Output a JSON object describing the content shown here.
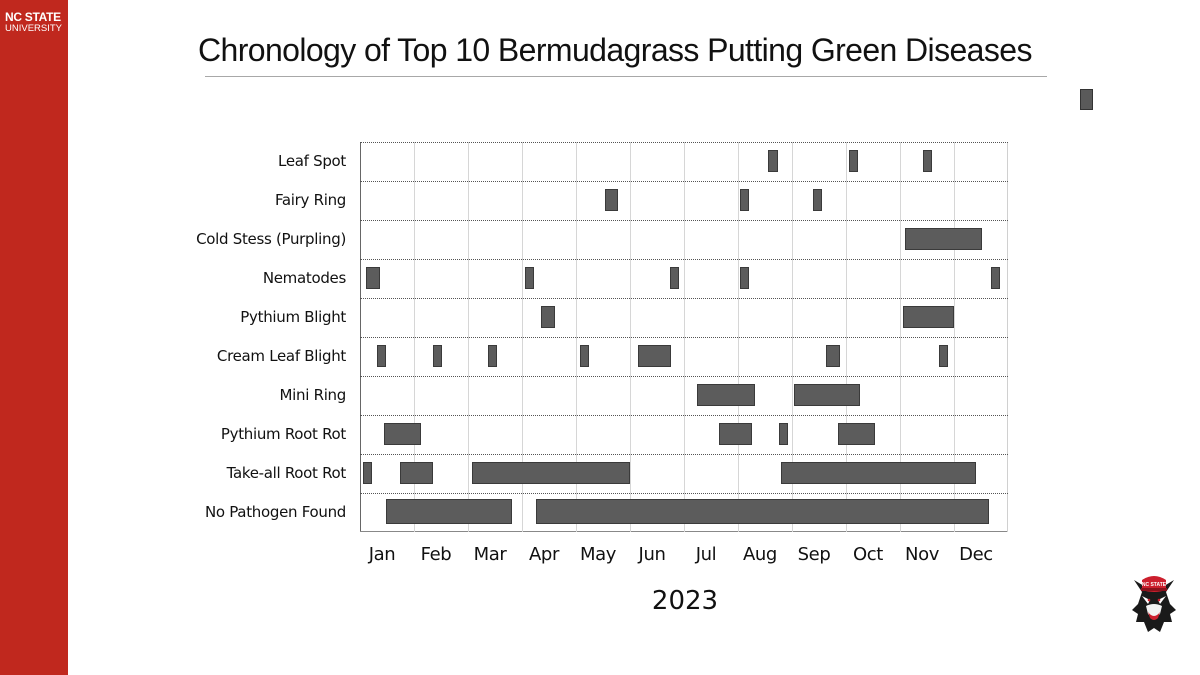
{
  "brand": {
    "line1": "NC STATE",
    "line2": "UNIVERSITY",
    "color": "#c0281e"
  },
  "slide": {
    "title": "Chronology of Top 10 Bermudagrass Putting Green Diseases"
  },
  "mascot": {
    "icon": "wolf-mascot-icon",
    "hat_text": "NC STATE"
  },
  "chart_data": {
    "type": "timeline",
    "title": "Chronology of Top 10 Bermudagrass Putting Green Diseases",
    "xlabel": "2023",
    "ylabel": "",
    "categories": [
      "Leaf Spot",
      "Fairy Ring",
      "Cold Stess (Purpling)",
      "Nematodes",
      "Pythium Blight",
      "Cream Leaf Blight",
      "Mini Ring",
      "Pythium Root Rot",
      "Take-all Root Rot",
      "No Pathogen Found"
    ],
    "x_ticks": [
      "Jan",
      "Feb",
      "Mar",
      "Apr",
      "May",
      "Jun",
      "Jul",
      "Aug",
      "Sep",
      "Oct",
      "Nov",
      "Dec"
    ],
    "x_unit": "month index (0 = start of Jan, 12 = end of Dec)",
    "xlim": [
      0,
      12
    ],
    "grid": {
      "vertical": "solid light gray at month boundaries",
      "horizontal": "dotted row separators"
    },
    "bar_color": "#5c5c5c",
    "series": [
      {
        "name": "Leaf Spot",
        "intervals": [
          [
            7.55,
            7.74
          ],
          [
            9.06,
            9.22
          ],
          [
            10.43,
            10.6
          ]
        ]
      },
      {
        "name": "Fairy Ring",
        "intervals": [
          [
            4.54,
            4.78
          ],
          [
            7.04,
            7.2
          ],
          [
            8.39,
            8.56
          ]
        ]
      },
      {
        "name": "Cold Stess (Purpling)",
        "intervals": [
          [
            10.09,
            11.52
          ]
        ]
      },
      {
        "name": "Nematodes",
        "intervals": [
          [
            0.11,
            0.37
          ],
          [
            3.06,
            3.22
          ],
          [
            5.74,
            5.91
          ],
          [
            7.04,
            7.2
          ],
          [
            11.69,
            11.85
          ]
        ]
      },
      {
        "name": "Pythium Blight",
        "intervals": [
          [
            3.35,
            3.61
          ],
          [
            10.06,
            11.0
          ]
        ]
      },
      {
        "name": "Cream Leaf Blight",
        "intervals": [
          [
            0.31,
            0.48
          ],
          [
            1.35,
            1.52
          ],
          [
            2.37,
            2.54
          ],
          [
            4.07,
            4.24
          ],
          [
            5.15,
            5.76
          ],
          [
            8.63,
            8.89
          ],
          [
            10.72,
            10.89
          ]
        ]
      },
      {
        "name": "Mini Ring",
        "intervals": [
          [
            6.24,
            7.31
          ],
          [
            8.04,
            9.26
          ]
        ]
      },
      {
        "name": "Pythium Root Rot",
        "intervals": [
          [
            0.44,
            1.13
          ],
          [
            6.65,
            7.26
          ],
          [
            7.76,
            7.93
          ],
          [
            8.85,
            9.54
          ]
        ]
      },
      {
        "name": "Take-all Root Rot",
        "intervals": [
          [
            0.06,
            0.22
          ],
          [
            0.74,
            1.35
          ],
          [
            2.07,
            5.0
          ],
          [
            7.8,
            11.41
          ]
        ]
      },
      {
        "name": "No Pathogen Found",
        "intervals": [
          [
            0.48,
            2.81
          ],
          [
            3.26,
            11.65
          ]
        ]
      }
    ]
  },
  "corner_marker": {
    "color": "#5a5a5a"
  }
}
